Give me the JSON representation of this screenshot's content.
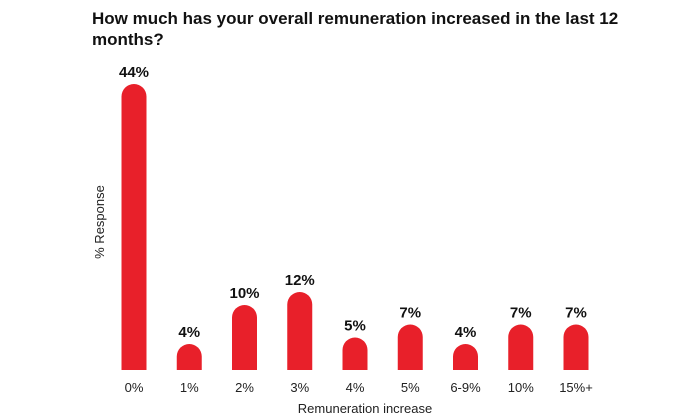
{
  "chart_data": {
    "type": "bar",
    "title": "How much has your overall remuneration increased in the last 12 months?",
    "xlabel": "Remuneration increase",
    "ylabel": "% Response",
    "categories": [
      "0%",
      "1%",
      "2%",
      "3%",
      "4%",
      "5%",
      "6-9%",
      "10%",
      "15%+"
    ],
    "values": [
      44,
      4,
      10,
      12,
      5,
      7,
      4,
      7,
      7
    ],
    "data_labels": [
      "44%",
      "4%",
      "10%",
      "12%",
      "5%",
      "7%",
      "4%",
      "7%",
      "7%"
    ],
    "bar_color": "#e8202a",
    "grid": false,
    "legend": "none"
  }
}
